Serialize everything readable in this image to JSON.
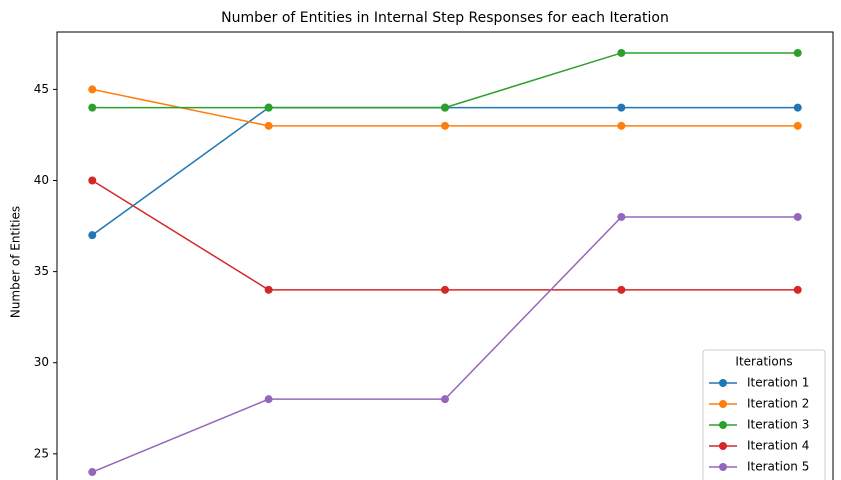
{
  "chart_data": {
    "type": "line",
    "title": "Number of Entities in Internal Step Responses for each Iteration",
    "y_label": "Number of Entities",
    "categories": [
      null,
      null,
      null,
      null,
      null
    ],
    "series": [
      {
        "name": "Iteration 1",
        "color": "#1f77b4",
        "values": [
          37,
          44,
          44,
          44,
          44
        ]
      },
      {
        "name": "Iteration 2",
        "color": "#ff7f0e",
        "values": [
          45,
          43,
          43,
          43,
          43
        ]
      },
      {
        "name": "Iteration 3",
        "color": "#2ca02c",
        "values": [
          44,
          44,
          44,
          47,
          47
        ]
      },
      {
        "name": "Iteration 4",
        "color": "#d62728",
        "values": [
          40,
          34,
          34,
          34,
          34
        ]
      },
      {
        "name": "Iteration 5",
        "color": "#9467bd",
        "values": [
          24,
          28,
          28,
          38,
          38
        ]
      }
    ],
    "ylim": [
      22.85,
      48.15
    ],
    "yticks": [
      25,
      30,
      35,
      40,
      45
    ],
    "legend_title": "Iterations",
    "legend_position": "lower right",
    "grid": false
  }
}
